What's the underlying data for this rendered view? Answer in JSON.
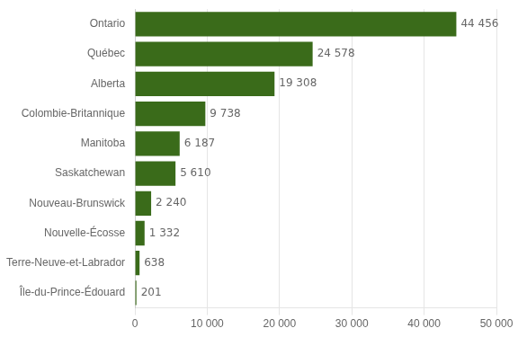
{
  "chart_data": {
    "type": "bar",
    "orientation": "horizontal",
    "categories": [
      "Île-du-Prince-Édouard",
      "Terre-Neuve-et-Labrador",
      "Nouvelle-Écosse",
      "Nouveau-Brunswick",
      "Saskatchewan",
      "Manitoba",
      "Colombie-Britannique",
      "Alberta",
      "Québec",
      "Ontario"
    ],
    "values": [
      201,
      638,
      1332,
      2240,
      5610,
      6187,
      9738,
      19308,
      24578,
      44456
    ],
    "value_labels": [
      "201",
      "638",
      "1 332",
      "2 240",
      "5 610",
      "6 187",
      "9 738",
      "19 308",
      "24 578",
      "44 456"
    ],
    "data_labels": true,
    "color": "#3a6b1a",
    "xlim": [
      0,
      50000
    ],
    "xticks": [
      0,
      {
        "value": 10000,
        "label": "10 000"
      },
      {
        "value": 20000,
        "label": "20 000"
      },
      {
        "value": 30000,
        "label": "30 000"
      },
      {
        "value": 40000,
        "label": "40 000"
      },
      {
        "value": 50000,
        "label": "50 000"
      }
    ],
    "grid": true
  }
}
